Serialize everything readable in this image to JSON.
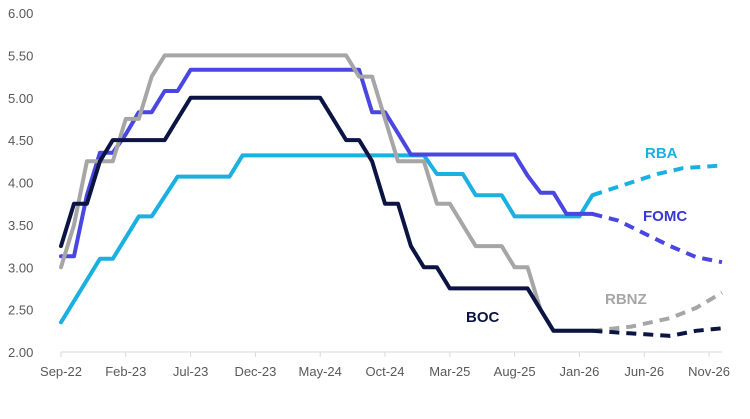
{
  "chart_data": {
    "type": "line",
    "title": "",
    "xlabel": "",
    "ylabel": "",
    "ylim": [
      2.0,
      6.0
    ],
    "yticks": [
      "6.00",
      "5.50",
      "5.00",
      "4.50",
      "4.00",
      "3.50",
      "3.00",
      "2.50",
      "2.00"
    ],
    "xlim": [
      "2022-09",
      "2026-12"
    ],
    "xticks": [
      {
        "label": "Sep-22",
        "date": "2022-09"
      },
      {
        "label": "Feb-23",
        "date": "2023-02"
      },
      {
        "label": "Jul-23",
        "date": "2023-07"
      },
      {
        "label": "Dec-23",
        "date": "2023-12"
      },
      {
        "label": "May-24",
        "date": "2024-05"
      },
      {
        "label": "Oct-24",
        "date": "2024-10"
      },
      {
        "label": "Mar-25",
        "date": "2025-03"
      },
      {
        "label": "Aug-25",
        "date": "2025-08"
      },
      {
        "label": "Jan-26",
        "date": "2026-01"
      },
      {
        "label": "Jun-26",
        "date": "2026-06"
      },
      {
        "label": "Nov-26",
        "date": "2026-11"
      }
    ],
    "grid": false,
    "legend": "none",
    "series": [
      {
        "name": "RBA",
        "color": "#1ab0e0",
        "actual": [
          {
            "x": "2022-09",
            "y": 2.35
          },
          {
            "x": "2022-12",
            "y": 3.1
          },
          {
            "x": "2023-01",
            "y": 3.1
          },
          {
            "x": "2023-03",
            "y": 3.6
          },
          {
            "x": "2023-04",
            "y": 3.6
          },
          {
            "x": "2023-06",
            "y": 4.07
          },
          {
            "x": "2023-10",
            "y": 4.07
          },
          {
            "x": "2023-11",
            "y": 4.32
          },
          {
            "x": "2025-01",
            "y": 4.32
          },
          {
            "x": "2025-02",
            "y": 4.1
          },
          {
            "x": "2025-04",
            "y": 4.1
          },
          {
            "x": "2025-05",
            "y": 3.85
          },
          {
            "x": "2025-07",
            "y": 3.85
          },
          {
            "x": "2025-08",
            "y": 3.6
          },
          {
            "x": "2026-01",
            "y": 3.6
          },
          {
            "x": "2026-02",
            "y": 3.85
          }
        ],
        "projected": [
          {
            "x": "2026-02",
            "y": 3.85
          },
          {
            "x": "2026-04",
            "y": 3.95
          },
          {
            "x": "2026-07",
            "y": 4.1
          },
          {
            "x": "2026-09",
            "y": 4.17
          },
          {
            "x": "2026-12",
            "y": 4.2
          }
        ]
      },
      {
        "name": "FOMC",
        "color": "#4a47e0",
        "actual": [
          {
            "x": "2022-09",
            "y": 3.13
          },
          {
            "x": "2022-10",
            "y": 3.13
          },
          {
            "x": "2022-11",
            "y": 3.85
          },
          {
            "x": "2022-12",
            "y": 4.35
          },
          {
            "x": "2023-01",
            "y": 4.35
          },
          {
            "x": "2023-02",
            "y": 4.57
          },
          {
            "x": "2023-03",
            "y": 4.83
          },
          {
            "x": "2023-04",
            "y": 4.83
          },
          {
            "x": "2023-05",
            "y": 5.08
          },
          {
            "x": "2023-06",
            "y": 5.08
          },
          {
            "x": "2023-07",
            "y": 5.33
          },
          {
            "x": "2024-08",
            "y": 5.33
          },
          {
            "x": "2024-09",
            "y": 4.83
          },
          {
            "x": "2024-10",
            "y": 4.83
          },
          {
            "x": "2024-11",
            "y": 4.58
          },
          {
            "x": "2024-12",
            "y": 4.33
          },
          {
            "x": "2025-08",
            "y": 4.33
          },
          {
            "x": "2025-09",
            "y": 4.08
          },
          {
            "x": "2025-10",
            "y": 3.88
          },
          {
            "x": "2025-11",
            "y": 3.88
          },
          {
            "x": "2025-12",
            "y": 3.63
          },
          {
            "x": "2026-02",
            "y": 3.63
          }
        ],
        "projected": [
          {
            "x": "2026-02",
            "y": 3.63
          },
          {
            "x": "2026-04",
            "y": 3.55
          },
          {
            "x": "2026-06",
            "y": 3.4
          },
          {
            "x": "2026-08",
            "y": 3.25
          },
          {
            "x": "2026-10",
            "y": 3.12
          },
          {
            "x": "2026-12",
            "y": 3.06
          }
        ]
      },
      {
        "name": "RBNZ",
        "color": "#a6a6a6",
        "actual": [
          {
            "x": "2022-09",
            "y": 3.0
          },
          {
            "x": "2022-10",
            "y": 3.5
          },
          {
            "x": "2022-11",
            "y": 4.25
          },
          {
            "x": "2023-01",
            "y": 4.25
          },
          {
            "x": "2023-02",
            "y": 4.75
          },
          {
            "x": "2023-03",
            "y": 4.75
          },
          {
            "x": "2023-04",
            "y": 5.25
          },
          {
            "x": "2023-05",
            "y": 5.5
          },
          {
            "x": "2024-07",
            "y": 5.5
          },
          {
            "x": "2024-08",
            "y": 5.25
          },
          {
            "x": "2024-09",
            "y": 5.25
          },
          {
            "x": "2024-10",
            "y": 4.75
          },
          {
            "x": "2024-11",
            "y": 4.25
          },
          {
            "x": "2025-01",
            "y": 4.25
          },
          {
            "x": "2025-02",
            "y": 3.75
          },
          {
            "x": "2025-03",
            "y": 3.75
          },
          {
            "x": "2025-04",
            "y": 3.5
          },
          {
            "x": "2025-05",
            "y": 3.25
          },
          {
            "x": "2025-07",
            "y": 3.25
          },
          {
            "x": "2025-08",
            "y": 3.0
          },
          {
            "x": "2025-09",
            "y": 3.0
          },
          {
            "x": "2025-10",
            "y": 2.5
          },
          {
            "x": "2025-11",
            "y": 2.25
          },
          {
            "x": "2026-02",
            "y": 2.25
          }
        ],
        "projected": [
          {
            "x": "2026-02",
            "y": 2.25
          },
          {
            "x": "2026-05",
            "y": 2.3
          },
          {
            "x": "2026-08",
            "y": 2.4
          },
          {
            "x": "2026-10",
            "y": 2.52
          },
          {
            "x": "2026-12",
            "y": 2.7
          }
        ]
      },
      {
        "name": "BOC",
        "color": "#0b1442",
        "actual": [
          {
            "x": "2022-09",
            "y": 3.25
          },
          {
            "x": "2022-10",
            "y": 3.75
          },
          {
            "x": "2022-11",
            "y": 3.75
          },
          {
            "x": "2022-12",
            "y": 4.25
          },
          {
            "x": "2023-01",
            "y": 4.5
          },
          {
            "x": "2023-05",
            "y": 4.5
          },
          {
            "x": "2023-06",
            "y": 4.75
          },
          {
            "x": "2023-07",
            "y": 5.0
          },
          {
            "x": "2024-05",
            "y": 5.0
          },
          {
            "x": "2024-06",
            "y": 4.75
          },
          {
            "x": "2024-07",
            "y": 4.5
          },
          {
            "x": "2024-08",
            "y": 4.5
          },
          {
            "x": "2024-09",
            "y": 4.25
          },
          {
            "x": "2024-10",
            "y": 3.75
          },
          {
            "x": "2024-11",
            "y": 3.75
          },
          {
            "x": "2024-12",
            "y": 3.25
          },
          {
            "x": "2025-01",
            "y": 3.0
          },
          {
            "x": "2025-02",
            "y": 3.0
          },
          {
            "x": "2025-03",
            "y": 2.75
          },
          {
            "x": "2025-09",
            "y": 2.75
          },
          {
            "x": "2025-10",
            "y": 2.5
          },
          {
            "x": "2025-11",
            "y": 2.25
          },
          {
            "x": "2026-02",
            "y": 2.25
          }
        ],
        "projected": [
          {
            "x": "2026-02",
            "y": 2.25
          },
          {
            "x": "2026-05",
            "y": 2.22
          },
          {
            "x": "2026-08",
            "y": 2.19
          },
          {
            "x": "2026-10",
            "y": 2.25
          },
          {
            "x": "2026-12",
            "y": 2.28
          }
        ]
      }
    ],
    "series_labels": [
      {
        "name": "RBA",
        "color": "#1ab0e0",
        "text": "RBA"
      },
      {
        "name": "FOMC",
        "color": "#3a36d8",
        "text": "FOMC"
      },
      {
        "name": "RBNZ",
        "color": "#a6a6a6",
        "text": "RBNZ"
      },
      {
        "name": "BOC",
        "color": "#0b1442",
        "text": "BOC"
      }
    ]
  }
}
